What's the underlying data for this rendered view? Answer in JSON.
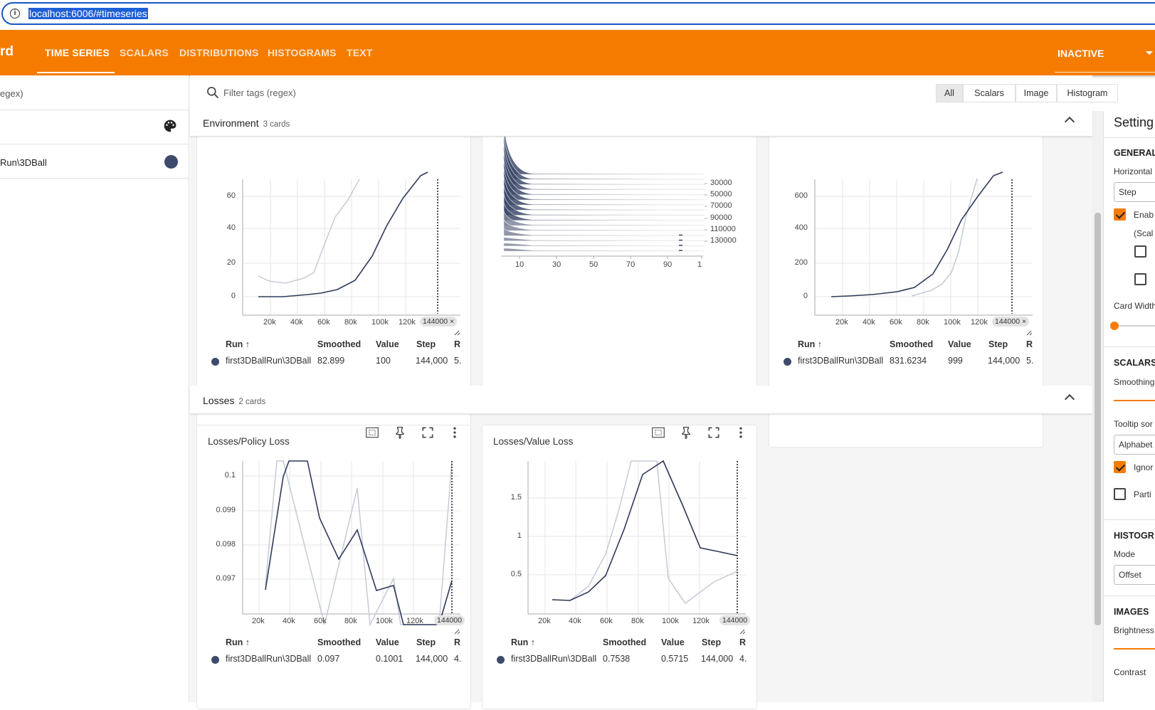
{
  "browser": {
    "url": "localhost:6006/#timeseries"
  },
  "header": {
    "brand": "rd",
    "tabs": [
      {
        "label": "TIME SERIES",
        "active": true
      },
      {
        "label": "SCALARS"
      },
      {
        "label": "DISTRIBUTIONS"
      },
      {
        "label": "HISTOGRAMS"
      },
      {
        "label": "TEXT"
      }
    ],
    "status": "INACTIVE"
  },
  "left_panel": {
    "filter_placeholder": "egex)",
    "run_label": "Run\\3DBall"
  },
  "filter": {
    "placeholder": "Filter tags (regex)",
    "types": [
      "All",
      "Scalars",
      "Image",
      "Histogram"
    ]
  },
  "groups": {
    "environment": {
      "title": "Environment",
      "count": "3 cards"
    },
    "losses": {
      "title": "Losses",
      "count": "2 cards"
    }
  },
  "table_headers": {
    "run": "Run ↑",
    "smoothed": "Smoothed",
    "value": "Value",
    "step": "Step",
    "relative": "R"
  },
  "cards": {
    "env_left": {
      "run": "first3DBallRun\\3DBall",
      "smoothed": "82.899",
      "value": "100",
      "step": "144,000",
      "relative": "5.",
      "x_ticks": [
        "20k",
        "40k",
        "60k",
        "80k",
        "100k",
        "120k"
      ],
      "y_ticks": [
        "0",
        "20",
        "40",
        "60"
      ],
      "step_badge": "144000 ×"
    },
    "env_hist": {
      "x_ticks": [
        "10",
        "30",
        "50",
        "70",
        "90",
        "1"
      ],
      "offset_labels": [
        "30000",
        "50000",
        "70000",
        "90000",
        "110000",
        "130000"
      ]
    },
    "env_right": {
      "run": "first3DBallRun\\3DBall",
      "smoothed": "831.6234",
      "value": "999",
      "step": "144,000",
      "relative": "5.",
      "x_ticks": [
        "20k",
        "40k",
        "60k",
        "80k",
        "100k",
        "120k"
      ],
      "y_ticks": [
        "0",
        "200",
        "400",
        "600"
      ],
      "step_badge": "144000 ×"
    },
    "policy_loss": {
      "title": "Losses/Policy Loss",
      "run": "first3DBallRun\\3DBall",
      "smoothed": "0.097",
      "value": "0.1001",
      "step": "144,000",
      "relative": "4.",
      "x_ticks": [
        "20k",
        "40k",
        "60k",
        "80k",
        "100k",
        "120k"
      ],
      "y_ticks": [
        "0.097",
        "0.098",
        "0.099",
        "0.1"
      ],
      "step_badge": "144000"
    },
    "value_loss": {
      "title": "Losses/Value Loss",
      "run": "first3DBallRun\\3DBall",
      "smoothed": "0.7538",
      "value": "0.5715",
      "step": "144,000",
      "relative": "4.",
      "x_ticks": [
        "20k",
        "40k",
        "60k",
        "80k",
        "100k",
        "120k"
      ],
      "y_ticks": [
        "0.5",
        "1",
        "1.5"
      ],
      "step_badge": "144000"
    }
  },
  "settings": {
    "title": "Setting",
    "general": "GENERAL",
    "horizontal": "Horizontal",
    "horizontal_value": "Step",
    "enable": "Enab",
    "scal": "(Scal",
    "card_width": "Card Width",
    "scalars": "SCALARS",
    "smoothing": "Smoothing",
    "tooltip": "Tooltip sor",
    "tooltip_value": "Alphabet",
    "ignore": "Ignor",
    "partition": "Parti",
    "histograms": "HISTOGR",
    "mode": "Mode",
    "mode_value": "Offset",
    "images": "IMAGES",
    "brightness": "Brightness",
    "contrast": "Contrast"
  },
  "colors": {
    "brand": "#f57c00",
    "run": "#3d4a6b",
    "raw": "#c5cad6"
  }
}
